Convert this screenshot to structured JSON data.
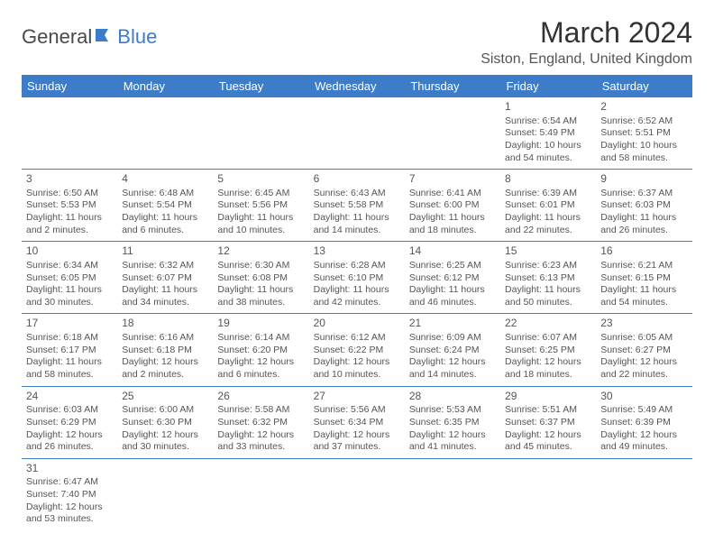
{
  "logo": {
    "text1": "General",
    "text2": "Blue"
  },
  "title": "March 2024",
  "location": "Siston, England, United Kingdom",
  "colors": {
    "header_bg": "#3d7cc9",
    "header_text": "#ffffff",
    "body_text": "#555555",
    "border": "#3d7cc9",
    "background": "#ffffff"
  },
  "daynames": [
    "Sunday",
    "Monday",
    "Tuesday",
    "Wednesday",
    "Thursday",
    "Friday",
    "Saturday"
  ],
  "weeks": [
    [
      null,
      null,
      null,
      null,
      null,
      {
        "n": "1",
        "sr": "Sunrise: 6:54 AM",
        "ss": "Sunset: 5:49 PM",
        "dl": "Daylight: 10 hours and 54 minutes."
      },
      {
        "n": "2",
        "sr": "Sunrise: 6:52 AM",
        "ss": "Sunset: 5:51 PM",
        "dl": "Daylight: 10 hours and 58 minutes."
      }
    ],
    [
      {
        "n": "3",
        "sr": "Sunrise: 6:50 AM",
        "ss": "Sunset: 5:53 PM",
        "dl": "Daylight: 11 hours and 2 minutes."
      },
      {
        "n": "4",
        "sr": "Sunrise: 6:48 AM",
        "ss": "Sunset: 5:54 PM",
        "dl": "Daylight: 11 hours and 6 minutes."
      },
      {
        "n": "5",
        "sr": "Sunrise: 6:45 AM",
        "ss": "Sunset: 5:56 PM",
        "dl": "Daylight: 11 hours and 10 minutes."
      },
      {
        "n": "6",
        "sr": "Sunrise: 6:43 AM",
        "ss": "Sunset: 5:58 PM",
        "dl": "Daylight: 11 hours and 14 minutes."
      },
      {
        "n": "7",
        "sr": "Sunrise: 6:41 AM",
        "ss": "Sunset: 6:00 PM",
        "dl": "Daylight: 11 hours and 18 minutes."
      },
      {
        "n": "8",
        "sr": "Sunrise: 6:39 AM",
        "ss": "Sunset: 6:01 PM",
        "dl": "Daylight: 11 hours and 22 minutes."
      },
      {
        "n": "9",
        "sr": "Sunrise: 6:37 AM",
        "ss": "Sunset: 6:03 PM",
        "dl": "Daylight: 11 hours and 26 minutes."
      }
    ],
    [
      {
        "n": "10",
        "sr": "Sunrise: 6:34 AM",
        "ss": "Sunset: 6:05 PM",
        "dl": "Daylight: 11 hours and 30 minutes."
      },
      {
        "n": "11",
        "sr": "Sunrise: 6:32 AM",
        "ss": "Sunset: 6:07 PM",
        "dl": "Daylight: 11 hours and 34 minutes."
      },
      {
        "n": "12",
        "sr": "Sunrise: 6:30 AM",
        "ss": "Sunset: 6:08 PM",
        "dl": "Daylight: 11 hours and 38 minutes."
      },
      {
        "n": "13",
        "sr": "Sunrise: 6:28 AM",
        "ss": "Sunset: 6:10 PM",
        "dl": "Daylight: 11 hours and 42 minutes."
      },
      {
        "n": "14",
        "sr": "Sunrise: 6:25 AM",
        "ss": "Sunset: 6:12 PM",
        "dl": "Daylight: 11 hours and 46 minutes."
      },
      {
        "n": "15",
        "sr": "Sunrise: 6:23 AM",
        "ss": "Sunset: 6:13 PM",
        "dl": "Daylight: 11 hours and 50 minutes."
      },
      {
        "n": "16",
        "sr": "Sunrise: 6:21 AM",
        "ss": "Sunset: 6:15 PM",
        "dl": "Daylight: 11 hours and 54 minutes."
      }
    ],
    [
      {
        "n": "17",
        "sr": "Sunrise: 6:18 AM",
        "ss": "Sunset: 6:17 PM",
        "dl": "Daylight: 11 hours and 58 minutes."
      },
      {
        "n": "18",
        "sr": "Sunrise: 6:16 AM",
        "ss": "Sunset: 6:18 PM",
        "dl": "Daylight: 12 hours and 2 minutes."
      },
      {
        "n": "19",
        "sr": "Sunrise: 6:14 AM",
        "ss": "Sunset: 6:20 PM",
        "dl": "Daylight: 12 hours and 6 minutes."
      },
      {
        "n": "20",
        "sr": "Sunrise: 6:12 AM",
        "ss": "Sunset: 6:22 PM",
        "dl": "Daylight: 12 hours and 10 minutes."
      },
      {
        "n": "21",
        "sr": "Sunrise: 6:09 AM",
        "ss": "Sunset: 6:24 PM",
        "dl": "Daylight: 12 hours and 14 minutes."
      },
      {
        "n": "22",
        "sr": "Sunrise: 6:07 AM",
        "ss": "Sunset: 6:25 PM",
        "dl": "Daylight: 12 hours and 18 minutes."
      },
      {
        "n": "23",
        "sr": "Sunrise: 6:05 AM",
        "ss": "Sunset: 6:27 PM",
        "dl": "Daylight: 12 hours and 22 minutes."
      }
    ],
    [
      {
        "n": "24",
        "sr": "Sunrise: 6:03 AM",
        "ss": "Sunset: 6:29 PM",
        "dl": "Daylight: 12 hours and 26 minutes."
      },
      {
        "n": "25",
        "sr": "Sunrise: 6:00 AM",
        "ss": "Sunset: 6:30 PM",
        "dl": "Daylight: 12 hours and 30 minutes."
      },
      {
        "n": "26",
        "sr": "Sunrise: 5:58 AM",
        "ss": "Sunset: 6:32 PM",
        "dl": "Daylight: 12 hours and 33 minutes."
      },
      {
        "n": "27",
        "sr": "Sunrise: 5:56 AM",
        "ss": "Sunset: 6:34 PM",
        "dl": "Daylight: 12 hours and 37 minutes."
      },
      {
        "n": "28",
        "sr": "Sunrise: 5:53 AM",
        "ss": "Sunset: 6:35 PM",
        "dl": "Daylight: 12 hours and 41 minutes."
      },
      {
        "n": "29",
        "sr": "Sunrise: 5:51 AM",
        "ss": "Sunset: 6:37 PM",
        "dl": "Daylight: 12 hours and 45 minutes."
      },
      {
        "n": "30",
        "sr": "Sunrise: 5:49 AM",
        "ss": "Sunset: 6:39 PM",
        "dl": "Daylight: 12 hours and 49 minutes."
      }
    ],
    [
      {
        "n": "31",
        "sr": "Sunrise: 6:47 AM",
        "ss": "Sunset: 7:40 PM",
        "dl": "Daylight: 12 hours and 53 minutes."
      },
      null,
      null,
      null,
      null,
      null,
      null
    ]
  ]
}
